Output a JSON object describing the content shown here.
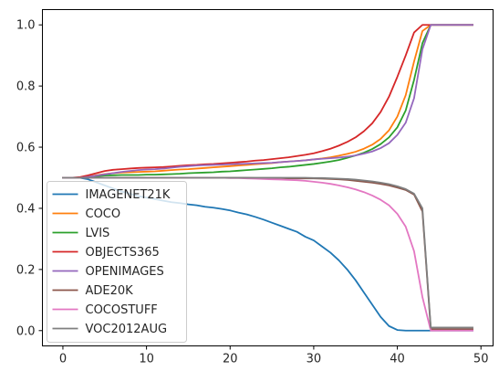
{
  "chart_data": {
    "type": "line",
    "title": "",
    "xlabel": "",
    "ylabel": "",
    "xlim": [
      -2.45,
      51.45
    ],
    "ylim": [
      -0.05,
      1.05
    ],
    "xticks": [
      0,
      10,
      20,
      30,
      40,
      50
    ],
    "yticks": [
      0.0,
      0.2,
      0.4,
      0.6,
      0.8,
      1.0
    ],
    "xtick_labels": [
      "0",
      "10",
      "20",
      "30",
      "40",
      "50"
    ],
    "ytick_labels": [
      "0.0",
      "0.2",
      "0.4",
      "0.6",
      "0.8",
      "1.0"
    ],
    "grid": false,
    "legend_position": "lower-left",
    "x": [
      0,
      1,
      2,
      3,
      4,
      5,
      6,
      7,
      8,
      9,
      10,
      11,
      12,
      13,
      14,
      15,
      16,
      17,
      18,
      19,
      20,
      21,
      22,
      23,
      24,
      25,
      26,
      27,
      28,
      29,
      30,
      31,
      32,
      33,
      34,
      35,
      36,
      37,
      38,
      39,
      40,
      41,
      42,
      43,
      44,
      45,
      46,
      47,
      48,
      49
    ],
    "series": [
      {
        "name": "IMAGENET21K",
        "color": "#1f77b4",
        "values": [
          0.5,
          0.5,
          0.5,
          0.495,
          0.485,
          0.475,
          0.465,
          0.455,
          0.448,
          0.44,
          0.435,
          0.43,
          0.425,
          0.42,
          0.417,
          0.413,
          0.41,
          0.405,
          0.402,
          0.398,
          0.393,
          0.386,
          0.38,
          0.372,
          0.363,
          0.353,
          0.343,
          0.333,
          0.323,
          0.307,
          0.295,
          0.275,
          0.255,
          0.23,
          0.2,
          0.165,
          0.125,
          0.085,
          0.045,
          0.015,
          0.002,
          0.0,
          0.0,
          0.0,
          0.0,
          0.0,
          0.0,
          0.0,
          0.0,
          0.0
        ]
      },
      {
        "name": "COCO",
        "color": "#ff7f0e",
        "values": [
          0.5,
          0.5,
          0.5,
          0.503,
          0.508,
          0.512,
          0.515,
          0.517,
          0.518,
          0.519,
          0.52,
          0.521,
          0.523,
          0.525,
          0.527,
          0.528,
          0.53,
          0.532,
          0.534,
          0.536,
          0.538,
          0.54,
          0.542,
          0.544,
          0.546,
          0.548,
          0.551,
          0.553,
          0.555,
          0.557,
          0.56,
          0.563,
          0.567,
          0.572,
          0.578,
          0.585,
          0.595,
          0.608,
          0.627,
          0.655,
          0.7,
          0.77,
          0.88,
          0.98,
          1.0,
          1.0,
          1.0,
          1.0,
          1.0,
          1.0
        ]
      },
      {
        "name": "LVIS",
        "color": "#2ca02c",
        "values": [
          0.5,
          0.5,
          0.5,
          0.502,
          0.505,
          0.507,
          0.508,
          0.509,
          0.509,
          0.509,
          0.51,
          0.51,
          0.511,
          0.512,
          0.513,
          0.515,
          0.516,
          0.517,
          0.518,
          0.52,
          0.521,
          0.523,
          0.525,
          0.527,
          0.529,
          0.531,
          0.534,
          0.536,
          0.539,
          0.542,
          0.545,
          0.549,
          0.553,
          0.558,
          0.565,
          0.573,
          0.582,
          0.594,
          0.61,
          0.632,
          0.665,
          0.72,
          0.82,
          0.94,
          1.0,
          1.0,
          1.0,
          1.0,
          1.0,
          1.0
        ]
      },
      {
        "name": "OBJECTS365",
        "color": "#d62728",
        "values": [
          0.5,
          0.5,
          0.502,
          0.508,
          0.515,
          0.522,
          0.526,
          0.528,
          0.53,
          0.532,
          0.533,
          0.534,
          0.535,
          0.537,
          0.539,
          0.541,
          0.542,
          0.544,
          0.545,
          0.547,
          0.549,
          0.551,
          0.553,
          0.556,
          0.558,
          0.561,
          0.564,
          0.567,
          0.571,
          0.575,
          0.58,
          0.587,
          0.595,
          0.605,
          0.617,
          0.632,
          0.652,
          0.678,
          0.715,
          0.765,
          0.83,
          0.9,
          0.975,
          1.0,
          1.0,
          1.0,
          1.0,
          1.0,
          1.0,
          1.0
        ]
      },
      {
        "name": "OPENIMAGES",
        "color": "#9467bd",
        "values": [
          0.5,
          0.5,
          0.5,
          0.503,
          0.507,
          0.511,
          0.515,
          0.519,
          0.522,
          0.525,
          0.527,
          0.528,
          0.53,
          0.533,
          0.536,
          0.538,
          0.54,
          0.541,
          0.542,
          0.543,
          0.544,
          0.545,
          0.546,
          0.547,
          0.548,
          0.549,
          0.551,
          0.553,
          0.555,
          0.557,
          0.56,
          0.562,
          0.564,
          0.566,
          0.569,
          0.573,
          0.579,
          0.586,
          0.597,
          0.613,
          0.64,
          0.68,
          0.76,
          0.92,
          1.0,
          1.0,
          1.0,
          1.0,
          1.0,
          1.0
        ]
      },
      {
        "name": "ADE20K",
        "color": "#8c564b",
        "values": [
          0.5,
          0.5,
          0.5,
          0.5,
          0.5,
          0.5,
          0.5,
          0.5,
          0.5,
          0.5,
          0.5,
          0.5,
          0.5,
          0.5,
          0.5,
          0.5,
          0.5,
          0.5,
          0.5,
          0.5,
          0.5,
          0.5,
          0.5,
          0.499,
          0.499,
          0.499,
          0.499,
          0.498,
          0.498,
          0.498,
          0.498,
          0.497,
          0.496,
          0.495,
          0.493,
          0.49,
          0.487,
          0.484,
          0.48,
          0.475,
          0.468,
          0.46,
          0.445,
          0.39,
          0.005,
          0.005,
          0.005,
          0.005,
          0.005,
          0.005
        ]
      },
      {
        "name": "COCOSTUFF",
        "color": "#e377c2",
        "values": [
          0.5,
          0.5,
          0.5,
          0.5,
          0.5,
          0.5,
          0.5,
          0.5,
          0.5,
          0.5,
          0.5,
          0.5,
          0.5,
          0.5,
          0.5,
          0.5,
          0.5,
          0.5,
          0.5,
          0.5,
          0.499,
          0.499,
          0.498,
          0.497,
          0.496,
          0.495,
          0.494,
          0.493,
          0.492,
          0.49,
          0.487,
          0.484,
          0.48,
          0.475,
          0.469,
          0.462,
          0.453,
          0.442,
          0.428,
          0.41,
          0.382,
          0.34,
          0.26,
          0.11,
          0.0,
          0.0,
          0.0,
          0.0,
          0.0,
          0.0
        ]
      },
      {
        "name": "VOC2012AUG",
        "color": "#7f7f7f",
        "values": [
          0.5,
          0.5,
          0.5,
          0.5,
          0.5,
          0.5,
          0.5,
          0.5,
          0.5,
          0.5,
          0.5,
          0.5,
          0.5,
          0.5,
          0.5,
          0.5,
          0.5,
          0.5,
          0.5,
          0.5,
          0.5,
          0.5,
          0.5,
          0.5,
          0.5,
          0.5,
          0.5,
          0.5,
          0.5,
          0.5,
          0.499,
          0.499,
          0.498,
          0.497,
          0.496,
          0.494,
          0.491,
          0.488,
          0.484,
          0.479,
          0.472,
          0.463,
          0.448,
          0.4,
          0.01,
          0.01,
          0.01,
          0.01,
          0.01,
          0.01
        ]
      }
    ]
  }
}
